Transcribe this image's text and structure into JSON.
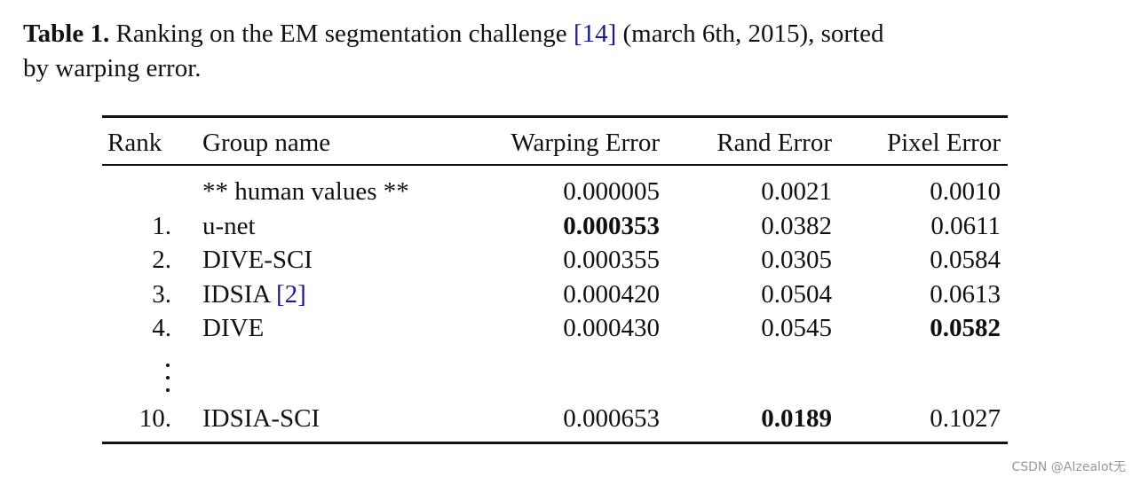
{
  "caption": {
    "label": "Table 1.",
    "text": "Ranking on the EM segmentation challenge",
    "citation": "[14]",
    "text_after_line1": "(march 6th, 2015), sorted",
    "text_line2": "by warping error."
  },
  "table": {
    "headers": [
      "Rank",
      "Group name",
      "Warping Error",
      "Rand Error",
      "Pixel Error"
    ],
    "rows": [
      {
        "rank": "",
        "group": "** human values **",
        "citation": "",
        "warping": "0.000005",
        "rand": "0.0021",
        "pixel": "0.0010",
        "bold": []
      },
      {
        "rank": "1.",
        "group": "u-net",
        "citation": "",
        "warping": "0.000353",
        "rand": "0.0382",
        "pixel": "0.0611",
        "bold": [
          "warping"
        ]
      },
      {
        "rank": "2.",
        "group": "DIVE-SCI",
        "citation": "",
        "warping": "0.000355",
        "rand": "0.0305",
        "pixel": "0.0584",
        "bold": []
      },
      {
        "rank": "3.",
        "group": "IDSIA",
        "citation": "[2]",
        "warping": "0.000420",
        "rand": "0.0504",
        "pixel": "0.0613",
        "bold": []
      },
      {
        "rank": "4.",
        "group": "DIVE",
        "citation": "",
        "warping": "0.000430",
        "rand": "0.0545",
        "pixel": "0.0582",
        "bold": [
          "pixel"
        ]
      },
      {
        "rank": "10.",
        "group": "IDSIA-SCI",
        "citation": "",
        "warping": "0.000653",
        "rand": "0.0189",
        "pixel": "0.1027",
        "bold": [
          "rand"
        ]
      }
    ]
  },
  "watermark": "CSDN @AIzealot无"
}
